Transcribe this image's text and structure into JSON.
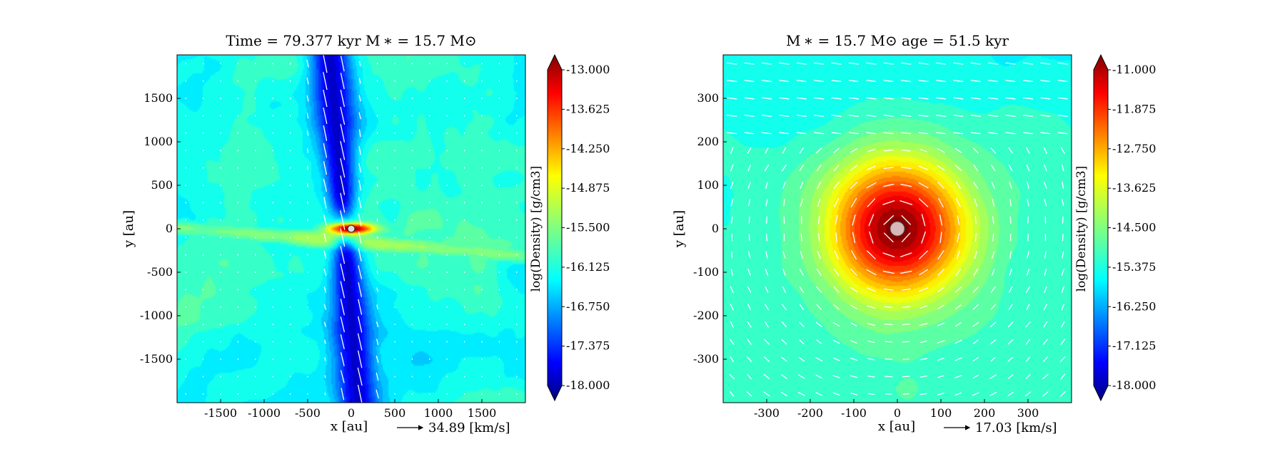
{
  "chart_data": [
    {
      "type": "heatmap",
      "title": "Time = 79.377 kyr    M ∗ = 15.7 M⊙",
      "xlabel": "x [au]",
      "ylabel": "y [au]",
      "xlim": [
        -2000,
        2000
      ],
      "ylim": [
        -2000,
        2000
      ],
      "x_ticks": [
        -1500,
        -1000,
        -500,
        0,
        500,
        1000,
        1500
      ],
      "y_ticks": [
        1500,
        1000,
        500,
        0,
        -500,
        -1000,
        -1500
      ],
      "velocity_key": "34.89 [km/s]",
      "colorbar": {
        "label": "log(Density) [g/cm3]",
        "min": -18.0,
        "max": -13.0,
        "ticks": [
          "-13.000",
          "-13.625",
          "-14.250",
          "-14.875",
          "-15.500",
          "-16.125",
          "-16.750",
          "-17.375",
          "-18.000"
        ]
      },
      "features": {
        "background_density": -16.0,
        "disk": {
          "x": 0,
          "y": 0,
          "half_width_au": 250,
          "half_height_au": 60,
          "peak_density": -13.0
        },
        "outflow_cavities": {
          "x_center_au": -80,
          "half_width_au": 200,
          "min_density": -17.6
        },
        "filament": {
          "y_au": -150,
          "density": -15.3
        },
        "sink_particle": {
          "x": 0,
          "y": 0
        }
      },
      "grid": false
    },
    {
      "type": "heatmap",
      "title": "M ∗ = 15.7 M⊙          age = 51.5 kyr",
      "xlabel": "x [au]",
      "ylabel": "y [au]",
      "xlim": [
        -400,
        400
      ],
      "ylim": [
        -400,
        400
      ],
      "x_ticks": [
        -300,
        -200,
        -100,
        0,
        100,
        200,
        300
      ],
      "y_ticks": [
        300,
        200,
        100,
        0,
        -100,
        -200,
        -300
      ],
      "velocity_key": "17.03 [km/s]",
      "colorbar": {
        "label": "log(Density) [g/cm3]",
        "min": -18.0,
        "max": -11.0,
        "ticks": [
          "-11.000",
          "-11.875",
          "-12.750",
          "-13.625",
          "-14.500",
          "-15.375",
          "-16.250",
          "-17.125",
          "-18.000"
        ]
      },
      "features": {
        "background_density": -15.0,
        "core": {
          "x": 0,
          "y": 0,
          "radius_au": 180,
          "peak_density": -11.0
        },
        "rotation": "counter-clockwise",
        "sink_particle": {
          "x": 0,
          "y": 0
        }
      },
      "grid": false
    }
  ]
}
